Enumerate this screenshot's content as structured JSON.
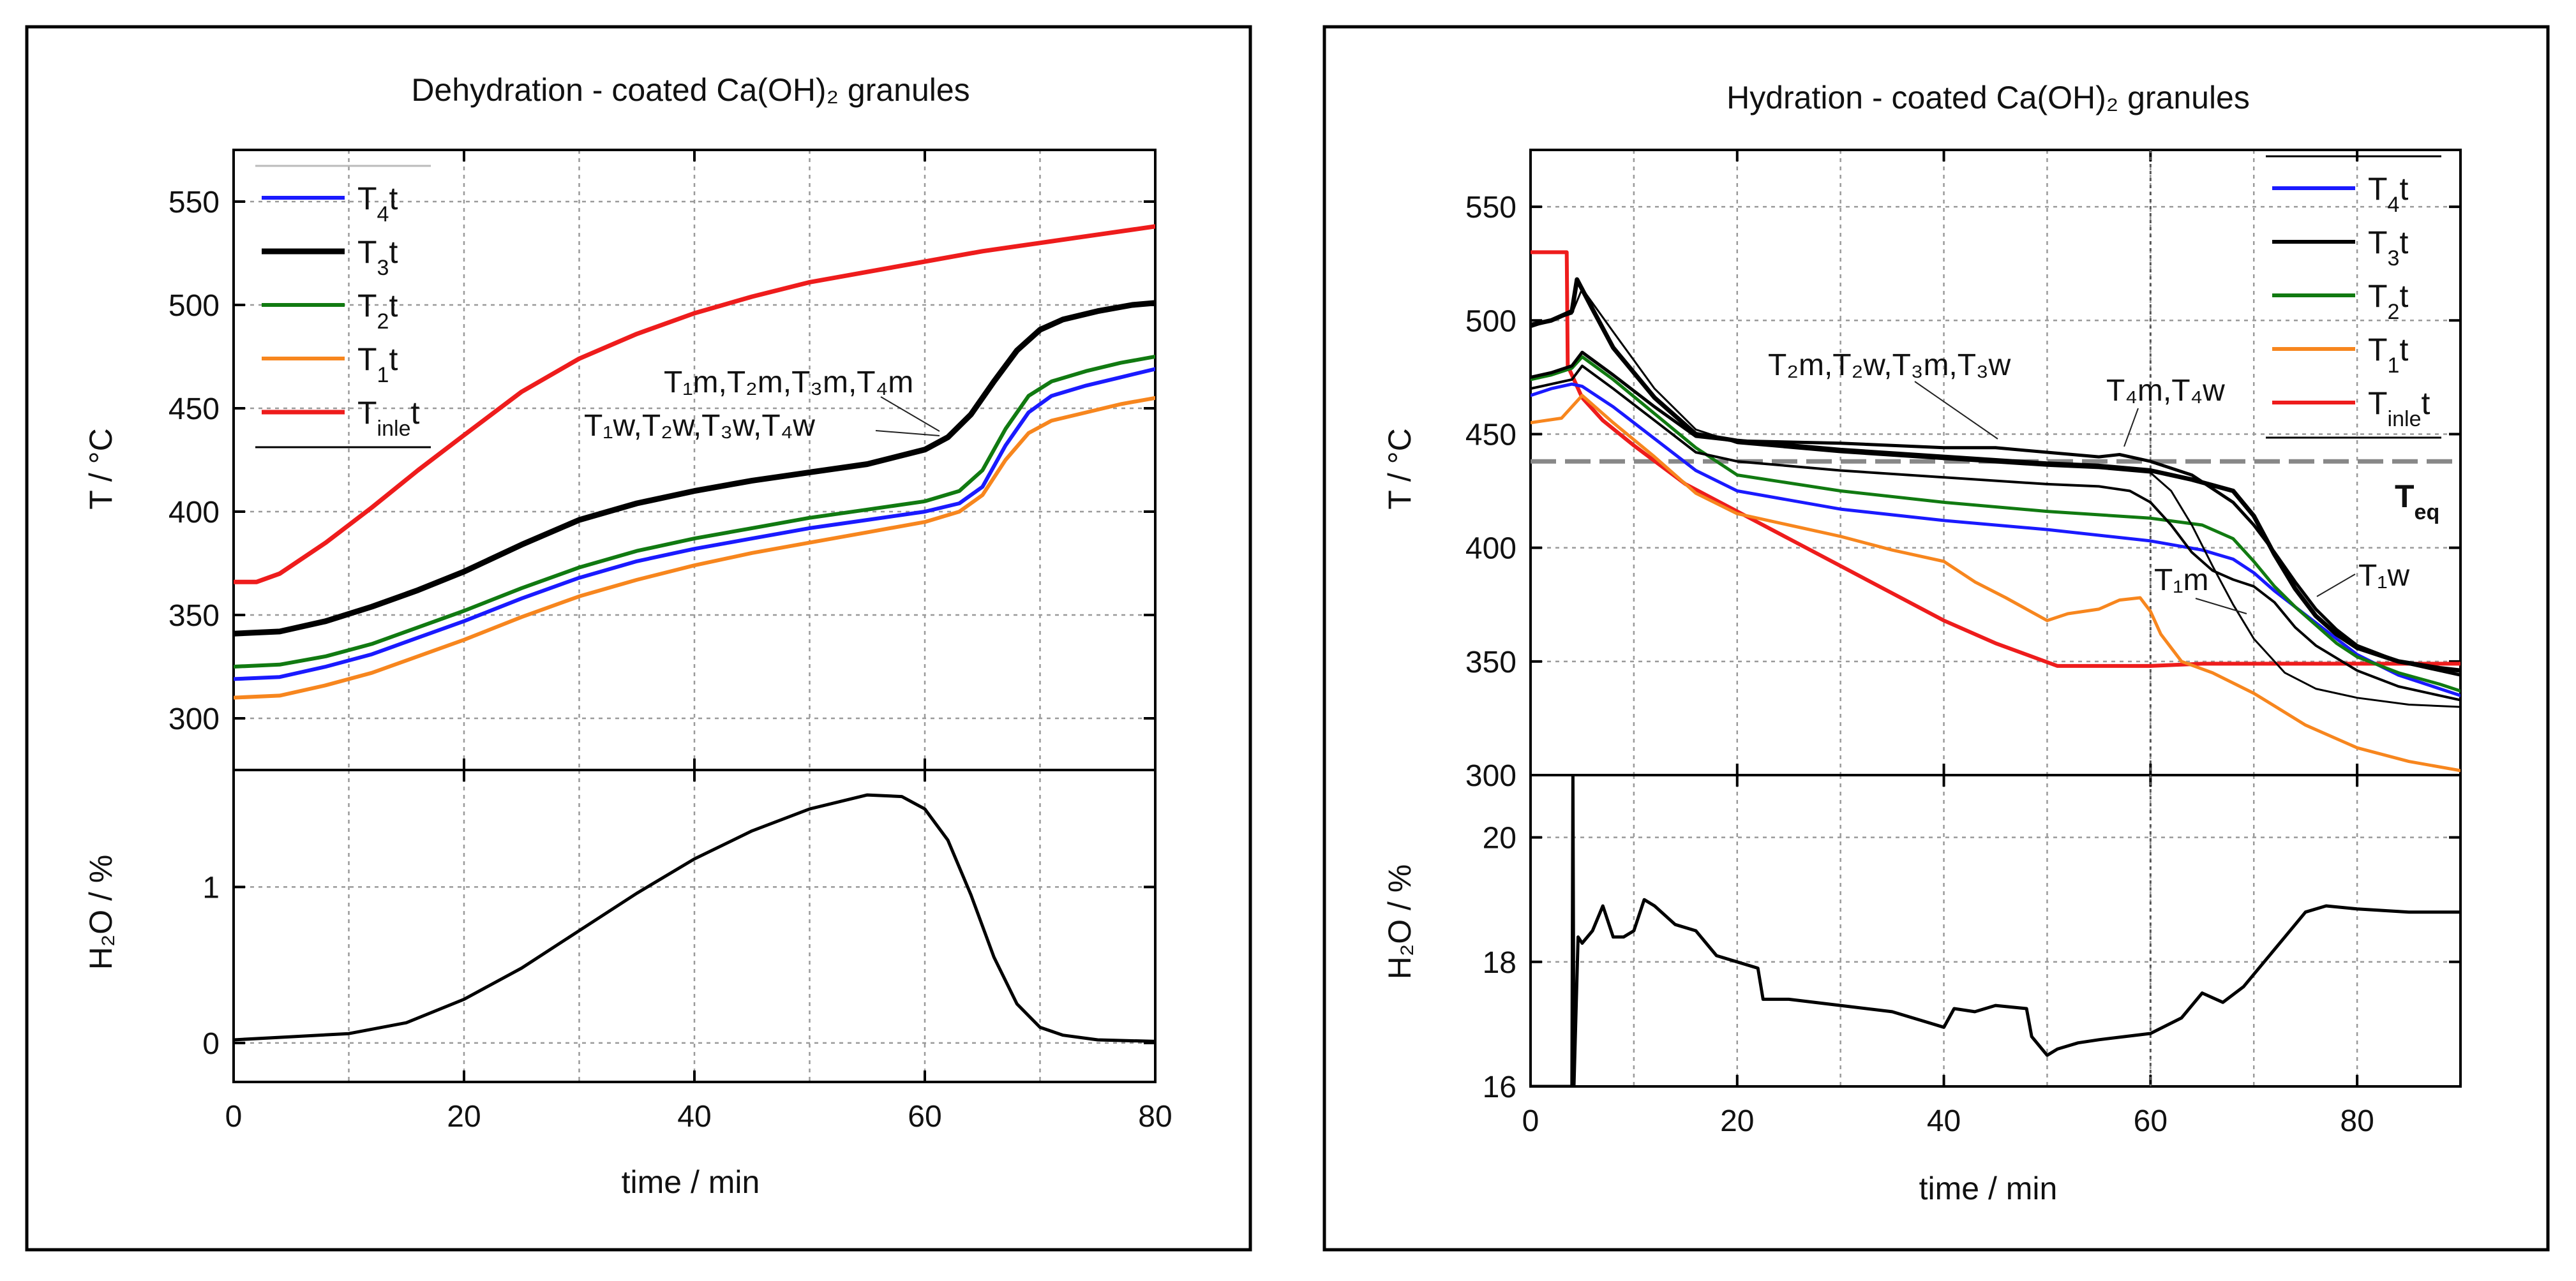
{
  "chart_data": [
    {
      "type": "line",
      "title": "Dehydration - coated Ca(OH)₂ granules",
      "xlabel": "time / min",
      "ylabel_top": "T / °C",
      "ylabel_bottom": "H₂O / %",
      "xlim": [
        0,
        80
      ],
      "ylim_top": [
        275,
        575
      ],
      "ylim_bottom": [
        -0.25,
        1.75
      ],
      "xticks": [
        0,
        20,
        40,
        60,
        80
      ],
      "xticks_minor_grid": [
        10,
        30,
        50,
        70
      ],
      "yticks_top": [
        300,
        350,
        400,
        450,
        500,
        550
      ],
      "yticks_bottom": [
        0,
        1
      ],
      "legend": [
        "T₄t",
        "T₃t",
        "T₂t",
        "T₁t",
        "Tinlet"
      ],
      "annotations": [
        "T₁m,T₂m,T₃m,T₄m",
        "T₁w,T₂w,T₃w,T₄w"
      ],
      "series": [
        {
          "name": "Tinlet",
          "color": "#ee1c1c",
          "width": 7,
          "x": [
            0,
            2,
            4,
            8,
            12,
            16,
            20,
            25,
            30,
            35,
            40,
            45,
            50,
            55,
            60,
            65,
            70,
            75,
            80
          ],
          "y": [
            366,
            366,
            370,
            385,
            402,
            420,
            437,
            458,
            474,
            486,
            496,
            504,
            511,
            516,
            521,
            526,
            530,
            534,
            538
          ]
        },
        {
          "name": "T₃t",
          "color": "#000000",
          "width": 9,
          "x": [
            0,
            4,
            8,
            12,
            16,
            20,
            25,
            30,
            35,
            40,
            45,
            50,
            55,
            60,
            62,
            64,
            66,
            68,
            70,
            72,
            75,
            78,
            80
          ],
          "y": [
            341,
            342,
            347,
            354,
            362,
            371,
            384,
            396,
            404,
            410,
            415,
            419,
            423,
            430,
            436,
            447,
            463,
            478,
            488,
            493,
            497,
            500,
            501
          ]
        },
        {
          "name": "T₂t",
          "color": "#117a11",
          "width": 6,
          "x": [
            0,
            4,
            8,
            12,
            16,
            20,
            25,
            30,
            35,
            40,
            45,
            50,
            55,
            60,
            63,
            65,
            67,
            69,
            71,
            74,
            77,
            80
          ],
          "y": [
            325,
            326,
            330,
            336,
            344,
            352,
            363,
            373,
            381,
            387,
            392,
            397,
            401,
            405,
            410,
            420,
            440,
            456,
            463,
            468,
            472,
            475
          ]
        },
        {
          "name": "T₄t",
          "color": "#1a1aff",
          "width": 6,
          "x": [
            0,
            4,
            8,
            12,
            16,
            20,
            25,
            30,
            35,
            40,
            45,
            50,
            55,
            60,
            63,
            65,
            67,
            69,
            71,
            74,
            77,
            80
          ],
          "y": [
            319,
            320,
            325,
            331,
            339,
            347,
            358,
            368,
            376,
            382,
            387,
            392,
            396,
            400,
            404,
            412,
            432,
            448,
            456,
            461,
            465,
            469
          ]
        },
        {
          "name": "T₁t",
          "color": "#f7861e",
          "width": 6,
          "x": [
            0,
            4,
            8,
            12,
            16,
            20,
            25,
            30,
            35,
            40,
            45,
            50,
            55,
            60,
            63,
            65,
            67,
            69,
            71,
            74,
            77,
            80
          ],
          "y": [
            310,
            311,
            316,
            322,
            330,
            338,
            349,
            359,
            367,
            374,
            380,
            385,
            390,
            395,
            400,
            408,
            425,
            438,
            444,
            448,
            452,
            455
          ]
        },
        {
          "name": "H₂O",
          "panel": "bottom",
          "color": "#000000",
          "width": 5,
          "x": [
            0,
            5,
            10,
            15,
            20,
            25,
            30,
            35,
            40,
            45,
            50,
            55,
            58,
            60,
            62,
            64,
            66,
            68,
            70,
            72,
            75,
            80
          ],
          "y": [
            0.02,
            0.04,
            0.06,
            0.13,
            0.28,
            0.48,
            0.72,
            0.96,
            1.18,
            1.36,
            1.5,
            1.59,
            1.58,
            1.5,
            1.3,
            0.95,
            0.55,
            0.25,
            0.1,
            0.05,
            0.02,
            0.01
          ]
        }
      ]
    },
    {
      "type": "line",
      "title": "Hydration - coated Ca(OH)₂ granules",
      "xlabel": "time / min",
      "ylabel_top": "T / °C",
      "ylabel_bottom": "H₂O / %",
      "xlim": [
        0,
        90
      ],
      "ylim_top": [
        300,
        575
      ],
      "ylim_bottom": [
        16,
        21
      ],
      "xticks": [
        0,
        20,
        40,
        60,
        80
      ],
      "xticks_minor_grid": [
        10,
        30,
        50,
        70
      ],
      "yticks_top": [
        300,
        350,
        400,
        450,
        500,
        550
      ],
      "yticks_bottom": [
        16,
        18,
        20
      ],
      "legend": [
        "T₄t",
        "T₃t",
        "T₂t",
        "T₁t",
        "Tinlet"
      ],
      "equilibrium": {
        "label": "Teq",
        "y": 438
      },
      "vline_x": 60,
      "annotations": [
        "T₂m,T₂w,T₃m,T₃w",
        "T₄m,T₄w",
        "T₁m",
        "T₁w"
      ],
      "series": [
        {
          "name": "Tinlet",
          "color": "#ee1c1c",
          "width": 6,
          "x": [
            0,
            3.5,
            3.6,
            5,
            7,
            10,
            15,
            20,
            25,
            30,
            35,
            40,
            45,
            51,
            55,
            60,
            65,
            70,
            80,
            90
          ],
          "y": [
            530,
            530,
            480,
            466,
            456,
            445,
            428,
            416,
            404,
            392,
            380,
            368,
            358,
            348,
            348,
            348,
            349,
            349,
            349,
            349
          ]
        },
        {
          "name": "T₁t",
          "color": "#f7861e",
          "width": 5,
          "x": [
            0,
            3,
            5,
            8,
            12,
            16,
            20,
            25,
            30,
            35,
            40,
            43,
            46,
            48,
            50,
            52,
            55,
            57,
            59,
            60,
            61,
            63,
            66,
            70,
            75,
            80,
            85,
            90
          ],
          "y": [
            455,
            457,
            467,
            455,
            440,
            424,
            415,
            410,
            405,
            399,
            394,
            385,
            378,
            373,
            368,
            371,
            373,
            377,
            378,
            372,
            362,
            350,
            345,
            336,
            322,
            312,
            306,
            302
          ]
        },
        {
          "name": "T₄t",
          "color": "#1a1aff",
          "width": 5,
          "x": [
            0,
            2,
            4,
            5,
            8,
            12,
            16,
            20,
            30,
            40,
            50,
            60,
            65,
            68,
            70,
            72,
            74,
            76,
            78,
            80,
            84,
            88,
            90
          ],
          "y": [
            467,
            470,
            472,
            471,
            462,
            448,
            434,
            425,
            417,
            412,
            408,
            403,
            399,
            395,
            389,
            381,
            374,
            367,
            360,
            353,
            344,
            338,
            335
          ]
        },
        {
          "name": "T₂t",
          "color": "#117a11",
          "width": 5,
          "x": [
            0,
            2,
            4,
            5,
            8,
            12,
            16,
            20,
            30,
            40,
            50,
            60,
            65,
            68,
            70,
            72,
            74,
            76,
            78,
            80,
            84,
            88,
            90
          ],
          "y": [
            474,
            476,
            479,
            484,
            474,
            459,
            444,
            432,
            425,
            420,
            416,
            413,
            410,
            404,
            394,
            383,
            374,
            366,
            358,
            352,
            345,
            340,
            337
          ]
        },
        {
          "name": "T₃t",
          "color": "#000000",
          "width": 3,
          "x": [
            0,
            2,
            4,
            5,
            8,
            12,
            16,
            20,
            30,
            40,
            50,
            55,
            60,
            62,
            64,
            66,
            68,
            70,
            73,
            76,
            80,
            85,
            90
          ],
          "y": [
            497,
            500,
            503,
            514,
            495,
            470,
            452,
            446,
            442,
            439,
            436,
            435,
            433,
            425,
            410,
            392,
            375,
            360,
            345,
            338,
            334,
            331,
            330
          ]
        },
        {
          "name": "T₂m,T₂w,T₃m,T₃w",
          "color": "#000000",
          "width": 7,
          "x": [
            0,
            2,
            4,
            4.5,
            6,
            8,
            12,
            16,
            20,
            30,
            40,
            50,
            55,
            60,
            64,
            68,
            70,
            72,
            74,
            76,
            78,
            80,
            84,
            88,
            90
          ],
          "y": [
            498,
            500,
            504,
            518,
            505,
            488,
            466,
            450,
            447,
            443,
            440,
            437,
            436,
            434,
            430,
            425,
            414,
            397,
            382,
            370,
            362,
            356,
            350,
            347,
            346
          ]
        },
        {
          "name": "T₄m,T₄w",
          "color": "#000000",
          "width": 5,
          "x": [
            0,
            2,
            4,
            5,
            8,
            12,
            16,
            20,
            30,
            40,
            45,
            50,
            55,
            57,
            60,
            64,
            68,
            70,
            72,
            74,
            76,
            78,
            80,
            84,
            88,
            90
          ],
          "y": [
            475,
            477,
            480,
            486,
            476,
            462,
            449,
            447,
            446,
            444,
            444,
            442,
            440,
            441,
            438,
            432,
            420,
            410,
            398,
            385,
            373,
            364,
            357,
            350,
            346,
            344
          ]
        },
        {
          "name": "T₁m,T₁w",
          "color": "#000000",
          "width": 4,
          "x": [
            0,
            2,
            4,
            5,
            8,
            12,
            16,
            20,
            30,
            40,
            50,
            55,
            58,
            60,
            62,
            64,
            66,
            68,
            70,
            72,
            74,
            76,
            80,
            84,
            88,
            90
          ],
          "y": [
            470,
            472,
            474,
            480,
            470,
            456,
            442,
            438,
            434,
            431,
            428,
            427,
            425,
            420,
            410,
            398,
            390,
            386,
            383,
            376,
            365,
            357,
            346,
            339,
            335,
            333
          ]
        },
        {
          "name": "H₂O",
          "panel": "bottom",
          "color": "#000000",
          "width": 5,
          "x": [
            0,
            4,
            4.1,
            4.2,
            4.6,
            5,
            6,
            7,
            8,
            9,
            10,
            11,
            12,
            14,
            16,
            18,
            20,
            22,
            22.5,
            25,
            30,
            35,
            38,
            40,
            41,
            43,
            45,
            48,
            48.5,
            50,
            51,
            53,
            55,
            60,
            63,
            65,
            67,
            69,
            71,
            73,
            75,
            77,
            80,
            85,
            90
          ],
          "y": [
            16,
            16,
            21,
            16,
            18.4,
            18.3,
            18.5,
            18.9,
            18.4,
            18.4,
            18.5,
            19.0,
            18.9,
            18.6,
            18.5,
            18.1,
            18.0,
            17.9,
            17.4,
            17.4,
            17.3,
            17.2,
            17.05,
            16.95,
            17.25,
            17.2,
            17.3,
            17.25,
            16.8,
            16.5,
            16.6,
            16.7,
            16.75,
            16.85,
            17.1,
            17.5,
            17.35,
            17.6,
            18.0,
            18.4,
            18.8,
            18.9,
            18.85,
            18.8,
            18.8
          ]
        }
      ]
    }
  ]
}
